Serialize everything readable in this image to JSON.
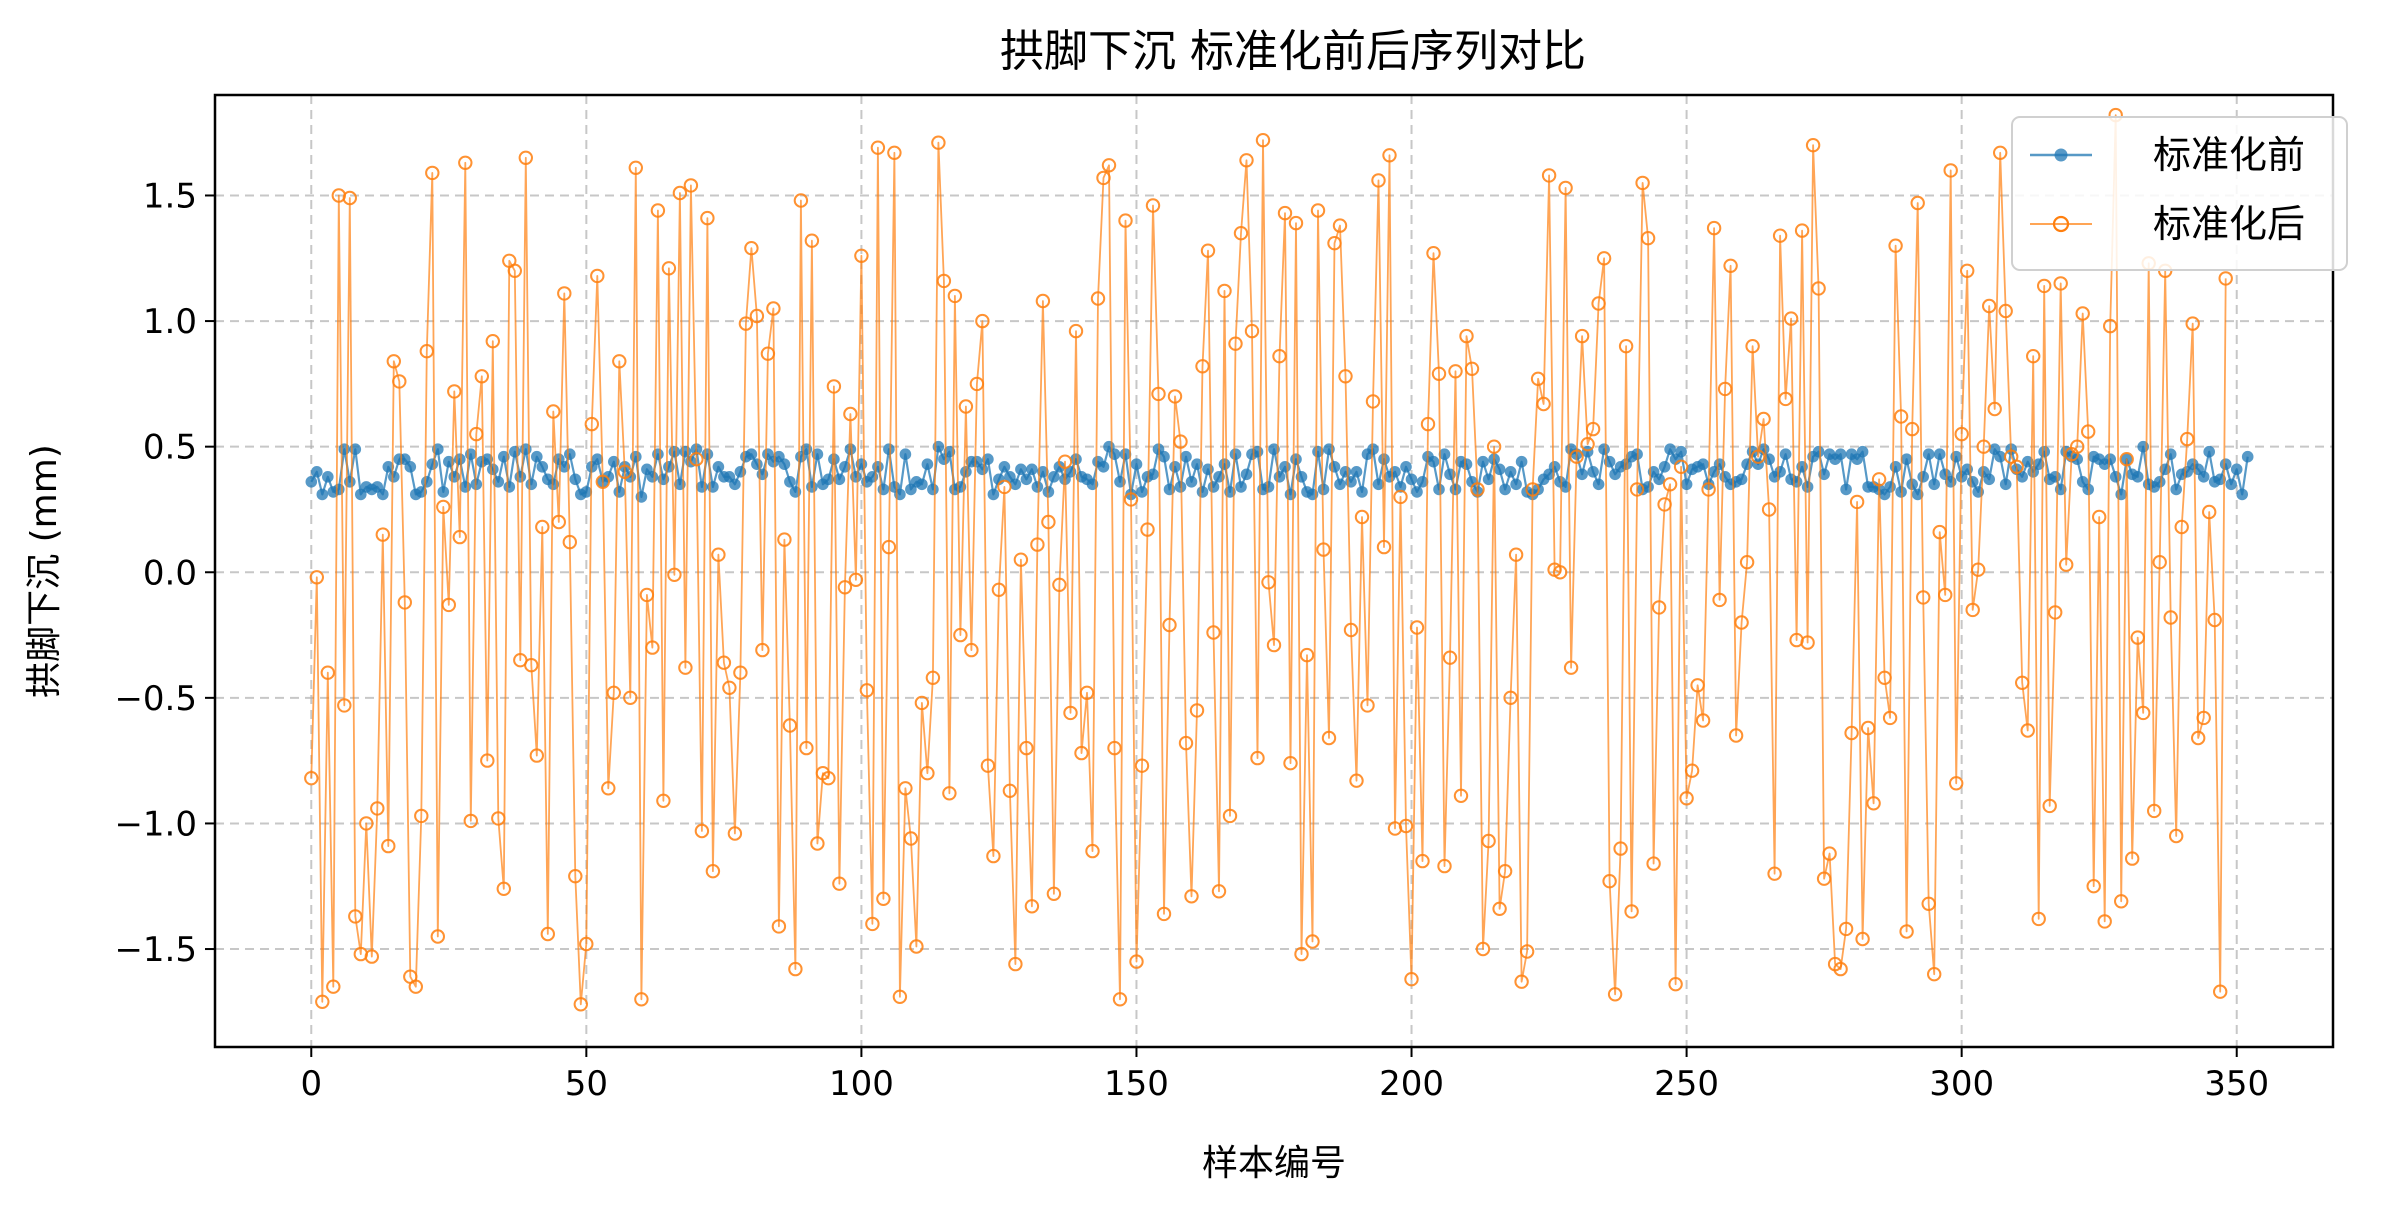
{
  "chart_data": {
    "type": "line",
    "title": "拱脚下沉 标准化前后序列对比",
    "xlabel": "样本编号",
    "ylabel": "拱脚下沉 (mm)",
    "xlim": [
      -17.5,
      367.5
    ],
    "ylim": [
      -1.89,
      1.9
    ],
    "xticks": [
      0,
      50,
      100,
      150,
      200,
      250,
      300,
      350
    ],
    "xtick_labels": [
      "0",
      "50",
      "100",
      "150",
      "200",
      "250",
      "300",
      "350"
    ],
    "yticks": [
      -1.5,
      -1.0,
      -0.5,
      0.0,
      0.5,
      1.0,
      1.5
    ],
    "ytick_labels": [
      "−1.5",
      "−1.0",
      "−0.5",
      "0.0",
      "0.5",
      "1.0",
      "1.5"
    ],
    "grid": true,
    "legend_position": "top-right",
    "series": [
      {
        "name": "标准化前",
        "color": "#1f77b4",
        "marker": "filled-circle",
        "x_start": 0,
        "values": [
          0.36,
          0.4,
          0.31,
          0.38,
          0.32,
          0.33,
          0.49,
          0.36,
          0.49,
          0.31,
          0.34,
          0.33,
          0.34,
          0.31,
          0.42,
          0.38,
          0.45,
          0.45,
          0.42,
          0.31,
          0.32,
          0.36,
          0.43,
          0.49,
          0.32,
          0.44,
          0.38,
          0.45,
          0.34,
          0.47,
          0.35,
          0.44,
          0.45,
          0.41,
          0.36,
          0.46,
          0.34,
          0.48,
          0.38,
          0.49,
          0.35,
          0.46,
          0.42,
          0.37,
          0.35,
          0.45,
          0.42,
          0.47,
          0.37,
          0.31,
          0.32,
          0.42,
          0.45,
          0.36,
          0.38,
          0.44,
          0.32,
          0.42,
          0.38,
          0.46,
          0.3,
          0.41,
          0.38,
          0.47,
          0.37,
          0.42,
          0.48,
          0.35,
          0.48,
          0.44,
          0.49,
          0.34,
          0.47,
          0.34,
          0.42,
          0.38,
          0.38,
          0.35,
          0.4,
          0.46,
          0.47,
          0.43,
          0.39,
          0.47,
          0.44,
          0.46,
          0.43,
          0.36,
          0.32,
          0.46,
          0.49,
          0.34,
          0.47,
          0.35,
          0.37,
          0.45,
          0.37,
          0.42,
          0.49,
          0.38,
          0.43,
          0.36,
          0.38,
          0.42,
          0.33,
          0.49,
          0.34,
          0.31,
          0.47,
          0.33,
          0.36,
          0.35,
          0.43,
          0.33,
          0.5,
          0.45,
          0.48,
          0.33,
          0.34,
          0.4,
          0.44,
          0.44,
          0.41,
          0.45,
          0.31,
          0.37,
          0.42,
          0.38,
          0.35,
          0.41,
          0.37,
          0.41,
          0.34,
          0.4,
          0.32,
          0.38,
          0.42,
          0.37,
          0.4,
          0.45,
          0.38,
          0.37,
          0.35,
          0.44,
          0.42,
          0.5,
          0.47,
          0.36,
          0.47,
          0.31,
          0.43,
          0.32,
          0.38,
          0.39,
          0.49,
          0.46,
          0.33,
          0.42,
          0.34,
          0.46,
          0.36,
          0.43,
          0.32,
          0.41,
          0.34,
          0.38,
          0.43,
          0.32,
          0.47,
          0.34,
          0.39,
          0.47,
          0.48,
          0.33,
          0.34,
          0.49,
          0.38,
          0.42,
          0.31,
          0.45,
          0.38,
          0.32,
          0.31,
          0.48,
          0.33,
          0.49,
          0.42,
          0.35,
          0.4,
          0.36,
          0.4,
          0.32,
          0.47,
          0.49,
          0.35,
          0.45,
          0.38,
          0.4,
          0.34,
          0.42,
          0.37,
          0.32,
          0.36,
          0.46,
          0.44,
          0.33,
          0.47,
          0.39,
          0.33,
          0.44,
          0.43,
          0.36,
          0.32,
          0.44,
          0.37,
          0.45,
          0.41,
          0.33,
          0.4,
          0.35,
          0.44,
          0.32,
          0.31,
          0.33,
          0.37,
          0.39,
          0.42,
          0.36,
          0.34,
          0.49,
          0.47,
          0.39,
          0.48,
          0.4,
          0.35,
          0.49,
          0.44,
          0.39,
          0.42,
          0.43,
          0.46,
          0.47,
          0.33,
          0.34,
          0.4,
          0.37,
          0.42,
          0.49,
          0.45,
          0.48,
          0.35,
          0.41,
          0.42,
          0.43,
          0.35,
          0.4,
          0.43,
          0.38,
          0.35,
          0.36,
          0.37,
          0.43,
          0.48,
          0.43,
          0.49,
          0.45,
          0.38,
          0.4,
          0.47,
          0.37,
          0.36,
          0.42,
          0.34,
          0.46,
          0.48,
          0.39,
          0.47,
          0.45,
          0.47,
          0.33,
          0.47,
          0.45,
          0.48,
          0.34,
          0.34,
          0.33,
          0.31,
          0.34,
          0.42,
          0.32,
          0.45,
          0.35,
          0.31,
          0.38,
          0.47,
          0.35,
          0.47,
          0.39,
          0.36,
          0.46,
          0.38,
          0.41,
          0.36,
          0.32,
          0.4,
          0.37,
          0.49,
          0.46,
          0.35,
          0.49,
          0.41,
          0.38,
          0.44,
          0.4,
          0.43,
          0.48,
          0.37,
          0.38,
          0.33,
          0.48,
          0.46,
          0.45,
          0.36,
          0.33,
          0.46,
          0.45,
          0.43,
          0.45,
          0.38,
          0.31,
          0.45,
          0.39,
          0.38,
          0.5,
          0.35,
          0.34,
          0.36,
          0.41,
          0.47,
          0.33,
          0.39,
          0.4,
          0.43,
          0.41,
          0.38,
          0.48,
          0.36,
          0.37,
          0.43,
          0.35,
          0.41,
          0.31,
          0.46
        ]
      },
      {
        "name": "标准化后",
        "color": "#ff7f0e",
        "marker": "hollow-circle",
        "x_start": 0,
        "values": [
          -0.82,
          -0.02,
          -1.71,
          -0.4,
          -1.65,
          1.5,
          -0.53,
          1.49,
          -1.37,
          -1.52,
          -1.0,
          -1.53,
          -0.94,
          0.15,
          -1.09,
          0.84,
          0.76,
          -0.12,
          -1.61,
          -1.65,
          -0.97,
          0.88,
          1.59,
          -1.45,
          0.26,
          -0.13,
          0.72,
          0.14,
          1.63,
          -0.99,
          0.55,
          0.78,
          -0.75,
          0.92,
          -0.98,
          -1.26,
          1.24,
          1.2,
          -0.35,
          1.65,
          -0.37,
          -0.73,
          0.18,
          -1.44,
          0.64,
          0.2,
          1.11,
          0.12,
          -1.21,
          -1.72,
          -1.48,
          0.59,
          1.18,
          0.36,
          -0.86,
          -0.48,
          0.84,
          0.4,
          -0.5,
          1.61,
          -1.7,
          -0.09,
          -0.3,
          1.44,
          -0.91,
          1.21,
          -0.01,
          1.51,
          -0.38,
          1.54,
          0.45,
          -1.03,
          1.41,
          -1.19,
          0.07,
          -0.36,
          -0.46,
          -1.04,
          -0.4,
          0.99,
          1.29,
          1.02,
          -0.31,
          0.87,
          1.05,
          -1.41,
          0.13,
          -0.61,
          -1.58,
          1.48,
          -0.7,
          1.32,
          -1.08,
          -0.8,
          -0.82,
          0.74,
          -1.24,
          -0.06,
          0.63,
          -0.03,
          1.26,
          -0.47,
          -1.4,
          1.69,
          -1.3,
          0.1,
          1.67,
          -1.69,
          -0.86,
          -1.06,
          -1.49,
          -0.52,
          -0.8,
          -0.42,
          1.71,
          1.16,
          -0.88,
          1.1,
          -0.25,
          0.66,
          -0.31,
          0.75,
          1.0,
          -0.77,
          -1.13,
          -0.07,
          0.34,
          -0.87,
          -1.56,
          0.05,
          -0.7,
          -1.33,
          0.11,
          1.08,
          0.2,
          -1.28,
          -0.05,
          0.44,
          -0.56,
          0.96,
          -0.72,
          -0.48,
          -1.11,
          1.09,
          1.57,
          1.62,
          -0.7,
          -1.7,
          1.4,
          0.29,
          -1.55,
          -0.77,
          0.17,
          1.46,
          0.71,
          -1.36,
          -0.21,
          0.7,
          0.52,
          -0.68,
          -1.29,
          -0.55,
          0.82,
          1.28,
          -0.24,
          -1.27,
          1.12,
          -0.97,
          0.91,
          1.35,
          1.64,
          0.96,
          -0.74,
          1.72,
          -0.04,
          -0.29,
          0.86,
          1.43,
          -0.76,
          1.39,
          -1.52,
          -0.33,
          -1.47,
          1.44,
          0.09,
          -0.66,
          1.31,
          1.38,
          0.78,
          -0.23,
          -0.83,
          0.22,
          -0.53,
          0.68,
          1.56,
          0.1,
          1.66,
          -1.02,
          0.3,
          -1.01,
          -1.62,
          -0.22,
          -1.15,
          0.59,
          1.27,
          0.79,
          -1.17,
          -0.34,
          0.8,
          -0.89,
          0.94,
          0.81,
          0.33,
          -1.5,
          -1.07,
          0.5,
          -1.34,
          -1.19,
          -0.5,
          0.07,
          -1.63,
          -1.51,
          0.33,
          0.77,
          0.67,
          1.58,
          0.01,
          0.0,
          1.53,
          -0.38,
          0.46,
          0.94,
          0.51,
          0.57,
          1.07,
          1.25,
          -1.23,
          -1.68,
          -1.1,
          0.9,
          -1.35,
          0.33,
          1.55,
          1.33,
          -1.16,
          -0.14,
          0.27,
          0.35,
          -1.64,
          0.42,
          -0.9,
          -0.79,
          -0.45,
          -0.59,
          0.33,
          1.37,
          -0.11,
          0.73,
          1.22,
          -0.65,
          -0.2,
          0.04,
          0.9,
          0.46,
          0.61,
          0.25,
          -1.2,
          1.34,
          0.69,
          1.01,
          -0.27,
          1.36,
          -0.28,
          1.7,
          1.13,
          -1.22,
          -1.12,
          -1.56,
          -1.58,
          -1.42,
          -0.64,
          0.28,
          -1.46,
          -0.62,
          -0.92,
          0.37,
          -0.42,
          -0.58,
          1.3,
          0.62,
          -1.43,
          0.57,
          1.47,
          -0.1,
          -1.32,
          -1.6,
          0.16,
          -0.09,
          1.6,
          -0.84,
          0.55,
          1.2,
          -0.15,
          0.01,
          0.5,
          1.06,
          0.65,
          1.67,
          1.04,
          0.46,
          0.42,
          -0.44,
          -0.63,
          0.86,
          -1.38,
          1.14,
          -0.93,
          -0.16,
          1.15,
          0.03,
          0.47,
          0.5,
          1.03,
          0.56,
          -1.25,
          0.22,
          -1.39,
          0.98,
          1.82,
          -1.31,
          0.45,
          -1.14,
          -0.26,
          -0.56,
          1.23,
          -0.95,
          0.04,
          1.2,
          -0.18,
          -1.05,
          0.18,
          0.53,
          0.99,
          -0.66,
          -0.58,
          0.24,
          -0.19,
          -1.67,
          1.17
        ]
      }
    ]
  }
}
